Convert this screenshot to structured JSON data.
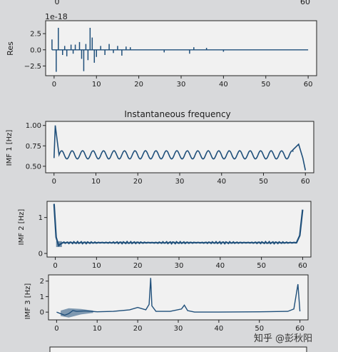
{
  "colors": {
    "background": "#d8d9db",
    "line": "#1f4f7a",
    "axes": "#222222"
  },
  "watermark": "知乎 @彭秋阳",
  "chart_data": [
    {
      "id": "res",
      "type": "line",
      "title": "",
      "ylabel": "Res",
      "offset_text": "1e-18",
      "xlim": [
        -2,
        62
      ],
      "ylim": [
        -4,
        4.5
      ],
      "xticks": [
        0,
        10,
        20,
        30,
        40,
        50,
        60
      ],
      "yticks": [
        -2.5,
        0.0,
        2.5
      ],
      "ytick_labels": [
        "−2.5",
        "0.0",
        "2.5"
      ],
      "series": [
        {
          "baseline": 0,
          "spikes": [
            [
              -0.5,
              1.6
            ],
            [
              0.5,
              -3.4
            ],
            [
              1.0,
              3.4
            ],
            [
              2.0,
              -0.8
            ],
            [
              2.5,
              0.6
            ],
            [
              3.0,
              -1.0
            ],
            [
              4.0,
              0.8
            ],
            [
              4.5,
              -0.6
            ],
            [
              5.0,
              0.8
            ],
            [
              6.0,
              1.2
            ],
            [
              6.5,
              -1.4
            ],
            [
              7.0,
              -3.3
            ],
            [
              7.5,
              0.9
            ],
            [
              8.0,
              -1.6
            ],
            [
              8.5,
              3.4
            ],
            [
              9.0,
              1.9
            ],
            [
              9.5,
              -2.0
            ],
            [
              10.0,
              -1.1
            ],
            [
              11.0,
              0.6
            ],
            [
              12.0,
              -0.8
            ],
            [
              13.0,
              0.9
            ],
            [
              14.0,
              -0.5
            ],
            [
              15.0,
              0.6
            ],
            [
              16.0,
              -0.9
            ],
            [
              17.0,
              0.5
            ],
            [
              18.0,
              0.4
            ],
            [
              26.0,
              -0.4
            ],
            [
              32.0,
              -0.6
            ],
            [
              33.0,
              0.4
            ],
            [
              36.0,
              0.3
            ],
            [
              40.0,
              -0.3
            ]
          ]
        }
      ]
    },
    {
      "id": "imf1",
      "type": "line",
      "title": "Instantaneous frequency",
      "ylabel": "IMF 1 [Hz]",
      "xlim": [
        -2,
        62
      ],
      "ylim": [
        0.42,
        1.05
      ],
      "xticks": [
        0,
        10,
        20,
        30,
        40,
        50,
        60
      ],
      "yticks": [
        0.5,
        0.75,
        1.0
      ],
      "ytick_labels": [
        "0.50",
        "0.75",
        "1.00"
      ],
      "series": [
        {
          "base": 0.64,
          "amplitude": 0.05,
          "period": 2.5,
          "start_peak": [
            [
              0,
              0.6
            ],
            [
              0.3,
              1.0
            ],
            [
              1.0,
              0.72
            ]
          ],
          "end_spike": [
            [
              57.0,
              0.7
            ],
            [
              58.4,
              0.77
            ],
            [
              59.4,
              0.6
            ],
            [
              60.0,
              0.45
            ]
          ]
        }
      ]
    },
    {
      "id": "imf2",
      "type": "line",
      "title": "",
      "ylabel": "IMF 2 [Hz]",
      "xlim": [
        -2,
        62
      ],
      "ylim": [
        -0.1,
        1.45
      ],
      "xticks": [
        0,
        10,
        20,
        30,
        40,
        50,
        60
      ],
      "yticks": [
        0,
        1
      ],
      "ytick_labels": [
        "0",
        "1"
      ],
      "series": [
        {
          "plateau": 0.3,
          "start_spike": [
            [
              -0.3,
              1.38
            ],
            [
              0.2,
              0.45
            ],
            [
              0.8,
              0.22
            ],
            [
              1.5,
              0.28
            ]
          ],
          "end_spike": [
            [
              58.5,
              0.3
            ],
            [
              59.3,
              0.5
            ],
            [
              60.0,
              1.22
            ]
          ]
        }
      ]
    },
    {
      "id": "imf3",
      "type": "line",
      "title": "",
      "ylabel": "IMF 3 [Hz]",
      "xlim": [
        -2,
        62
      ],
      "ylim": [
        -0.5,
        2.4
      ],
      "xticks": [
        0,
        10,
        20,
        30,
        40,
        50,
        60
      ],
      "yticks": [
        0,
        1,
        2
      ],
      "ytick_labels": [
        "0",
        "1",
        "2"
      ],
      "series": [
        {
          "knots": [
            [
              0,
              0
            ],
            [
              1,
              -0.1
            ],
            [
              2,
              -0.2
            ],
            [
              3,
              -0.1
            ],
            [
              4,
              0.1
            ],
            [
              5,
              0.05
            ],
            [
              7,
              0.08
            ],
            [
              10,
              0.02
            ],
            [
              14,
              0.05
            ],
            [
              18,
              0.15
            ],
            [
              20,
              0.3
            ],
            [
              22,
              0.15
            ],
            [
              22.8,
              0.5
            ],
            [
              23.2,
              2.2
            ],
            [
              23.5,
              0.4
            ],
            [
              24.5,
              0.05
            ],
            [
              28,
              0.05
            ],
            [
              30.8,
              0.2
            ],
            [
              31.5,
              0.45
            ],
            [
              32.3,
              0.1
            ],
            [
              34,
              0.0
            ],
            [
              40,
              0.0
            ],
            [
              50,
              0.02
            ],
            [
              57,
              0.05
            ],
            [
              58.5,
              0.2
            ],
            [
              59.5,
              1.8
            ],
            [
              60,
              0.05
            ]
          ]
        }
      ]
    }
  ]
}
